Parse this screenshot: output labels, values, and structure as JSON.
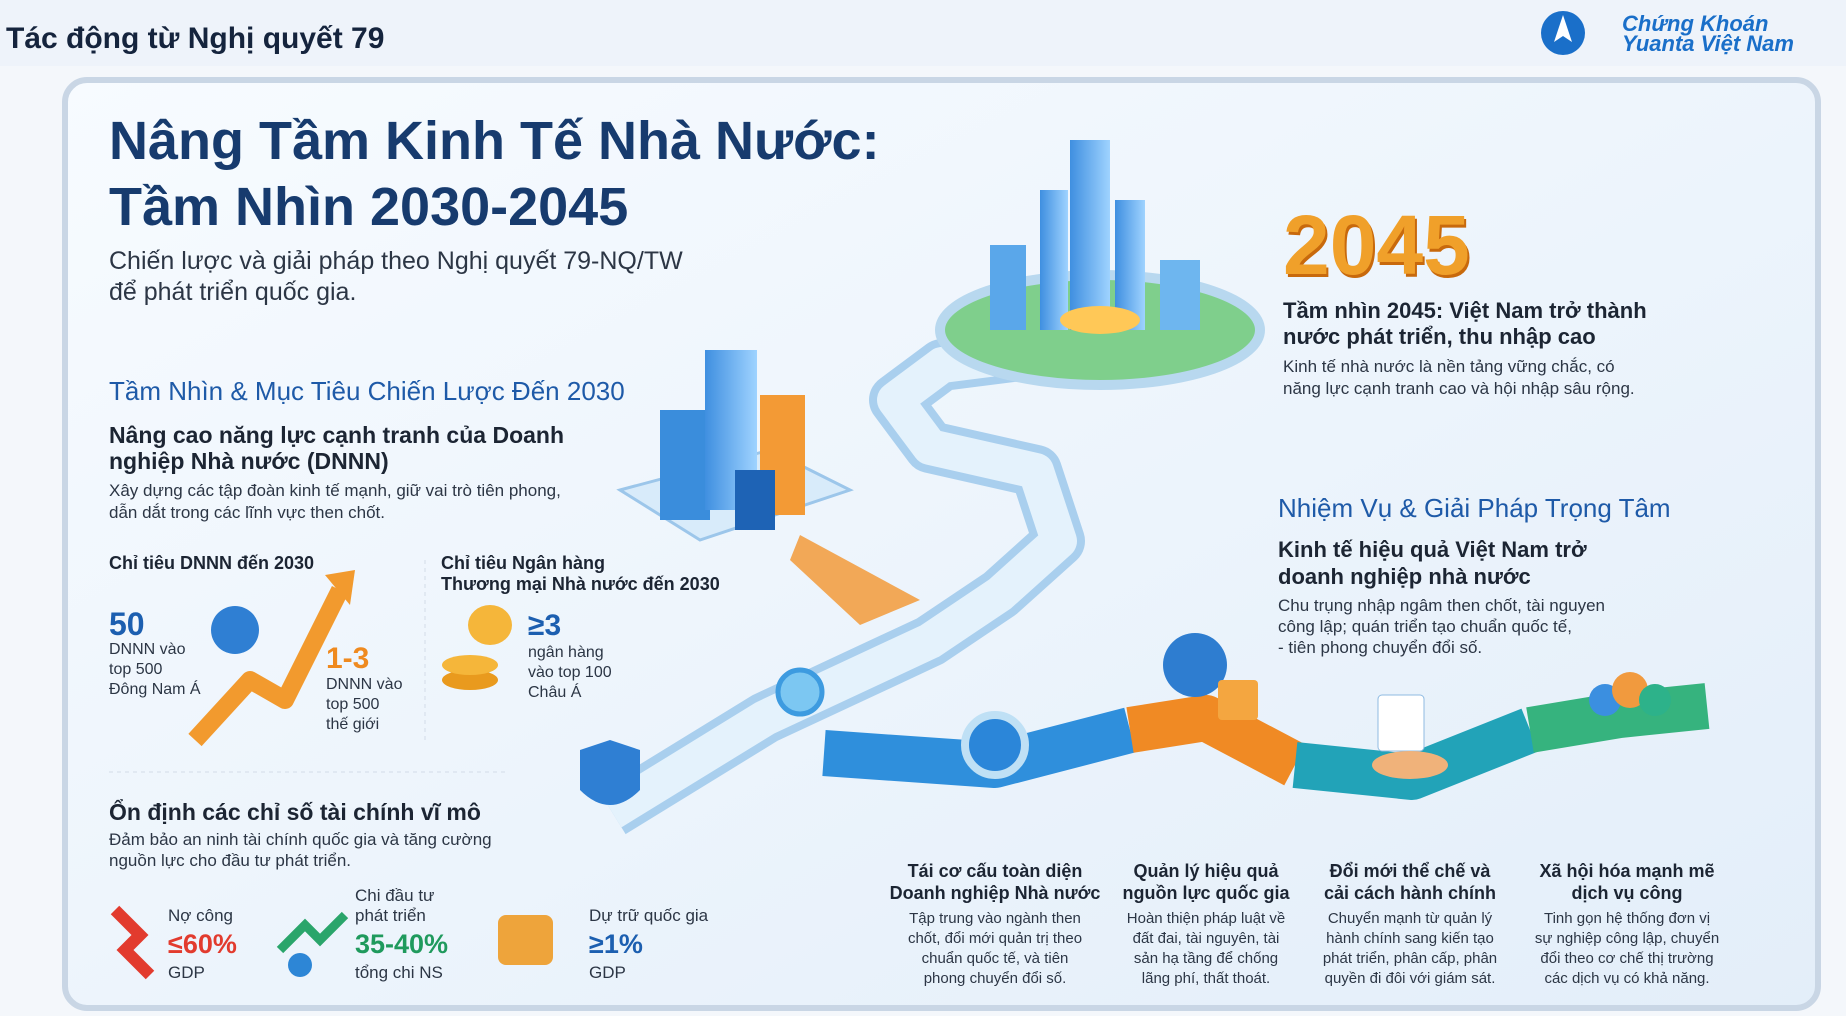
{
  "header": {
    "title": "Tác động từ Nghị quyết 79",
    "logo": [
      "Chứng Khoán",
      "Yuanta Việt Nam"
    ]
  },
  "main": {
    "title": [
      "Nâng Tầm Kinh Tế Nhà Nước:",
      "Tầm Nhìn 2030-2045"
    ],
    "subtitle": [
      "Chiến lược và giải pháp theo Nghị quyết 79-NQ/TW",
      "để phát triển quốc gia."
    ]
  },
  "vision2030": {
    "heading": "Tầm Nhìn & Mục Tiêu Chiến Lược Đến 2030",
    "goal_title": [
      "Nâng cao năng lực cạnh tranh của Doanh",
      "nghiệp Nhà nước (DNNN)"
    ],
    "goal_desc": [
      "Xây dựng các tập đoàn kinh tế mạnh, giữ vai trò tiên phong,",
      "dẫn dắt trong các lĩnh vực then chốt."
    ],
    "dnnn_target": {
      "label": "Chỉ tiêu DNNN đến 2030",
      "items": [
        {
          "value": "50",
          "desc": [
            "DNNN vào",
            "top 500",
            "Đông Nam Á"
          ]
        },
        {
          "value": "1-3",
          "desc": [
            "DNNN vào",
            "top 500",
            "thế giới"
          ]
        }
      ]
    },
    "bank_target": {
      "label": [
        "Chỉ tiêu Ngân hàng",
        "Thương mại Nhà nước đến 2030"
      ],
      "value": "≥3",
      "desc": [
        "ngân hàng",
        "vào top 100",
        "Châu Á"
      ]
    }
  },
  "macro": {
    "heading": "Ổn định các chỉ số tài chính vĩ mô",
    "desc": [
      "Đảm bảo an ninh tài chính quốc gia và tăng cường",
      "nguồn lực cho đầu tư phát triển."
    ],
    "items": [
      {
        "label": [
          "Nợ công"
        ],
        "value": "≤60%",
        "unit": "GDP"
      },
      {
        "label": [
          "Chi đầu tư",
          "phát triển"
        ],
        "value": "35-40%",
        "unit": "tổng chi NS"
      },
      {
        "label": [
          "Dự trữ quốc gia"
        ],
        "value": "≥1%",
        "unit": "GDP"
      }
    ]
  },
  "vision2045": {
    "year": "2045",
    "title": [
      "Tầm nhìn 2045: Việt Nam trở thành",
      "nước phát triển, thu nhập cao"
    ],
    "desc": [
      "Kinh tế nhà nước là nền tảng vững chắc, có",
      "năng lực cạnh tranh cao và hội nhập sâu rộng."
    ]
  },
  "tasks": {
    "heading": "Nhiệm Vụ & Giải Pháp Trọng Tâm",
    "title": [
      "Kinh tế hiệu quả Việt Nam trở",
      "doanh nghiệp nhà nước"
    ],
    "desc": [
      "Chu trụng nhập ngâm then chốt, tài nguyen",
      "công lập; quán triển tạo chuẩn quốc tế,",
      "- tiên phong chuyển đổi số."
    ],
    "items": [
      {
        "title": [
          "Tái cơ cấu toàn diện",
          "Doanh nghiệp Nhà nước"
        ],
        "desc": [
          "Tập trung vào ngành then",
          "chốt, đổi mới quản trị theo",
          "chuẩn quốc tế, và tiên",
          "phong chuyển đổi số."
        ]
      },
      {
        "title": [
          "Quản lý hiệu quả",
          "nguồn lực quốc gia"
        ],
        "desc": [
          "Hoàn thiện pháp luật về",
          "đất đai, tài nguyên, tài",
          "sản hạ tầng để chống",
          "lãng phí, thất thoát."
        ]
      },
      {
        "title": [
          "Đổi mới thể chế và",
          "cải cách hành chính"
        ],
        "desc": [
          "Chuyển mạnh từ quản lý",
          "hành chính sang kiến tạo",
          "phát triển, phân cấp, phân",
          "quyền đi đôi với giám sát."
        ]
      },
      {
        "title": [
          "Xã hội hóa mạnh mẽ",
          "dịch vụ công"
        ],
        "desc": [
          "Tinh gọn hệ thống đơn vị",
          "sự nghiệp công lập, chuyển",
          "đổi theo cơ chế thị trường",
          "các dịch vụ có khả năng."
        ]
      }
    ]
  }
}
